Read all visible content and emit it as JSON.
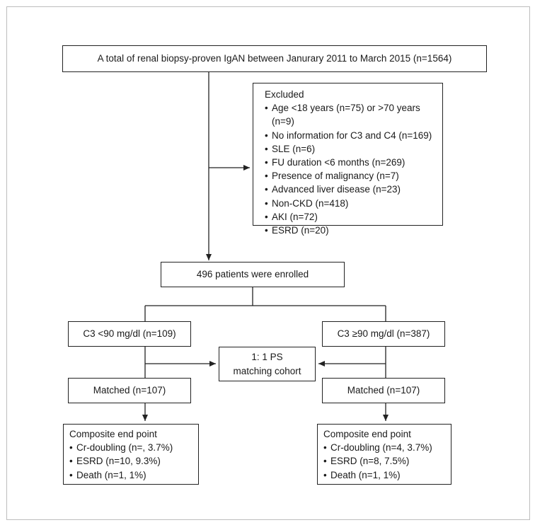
{
  "total": {
    "text": "A total of renal biopsy-proven IgAN between Janurary 2011 to March 2015 (n=1564)"
  },
  "excluded": {
    "title": "Excluded",
    "items": [
      "Age <18 years (n=75) or >70 years (n=9)",
      "No information for C3 and C4 (n=169)",
      "SLE (n=6)",
      "FU duration <6 months (n=269)",
      "Presence of malignancy (n=7)",
      " Advanced liver disease (n=23)",
      "Non-CKD (n=418)",
      "AKI (n=72)",
      "ESRD (n=20)"
    ]
  },
  "enrolled": {
    "text": "496 patients were enrolled"
  },
  "low_c3": {
    "text": "C3 <90 mg/dl (n=109)"
  },
  "high_c3": {
    "text": "C3 ≥90 mg/dl (n=387)"
  },
  "ps_matching": {
    "line1": "1: 1 PS",
    "line2": "matching cohort"
  },
  "matched_left": {
    "text": "Matched (n=107)"
  },
  "matched_right": {
    "text": "Matched (n=107)"
  },
  "outcome_left": {
    "title": "Composite end point",
    "items": [
      "Cr-doubling (n=, 3.7%)",
      "ESRD (n=10, 9.3%)",
      "Death (n=1, 1%)"
    ]
  },
  "outcome_right": {
    "title": "Composite end point",
    "items": [
      "Cr-doubling (n=4, 3.7%)",
      "ESRD (n=8, 7.5%)",
      "Death (n=1, 1%)"
    ]
  },
  "colors": {
    "line": "#222222",
    "frame": "#bdbdbd"
  }
}
